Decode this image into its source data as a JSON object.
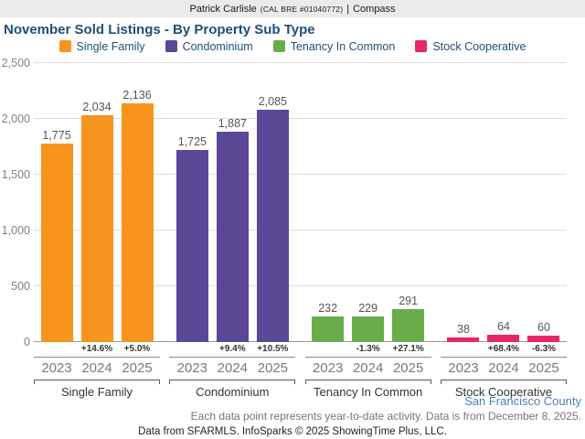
{
  "header": {
    "name": "Patrick Carlisle",
    "license": "(CAL BRE #01040772)",
    "separator": "|",
    "brand": "Compass"
  },
  "title": "November Sold Listings - By Property Sub Type",
  "legend": [
    {
      "label": "Single Family",
      "color": "#F7941E"
    },
    {
      "label": "Condominium",
      "color": "#5A4796"
    },
    {
      "label": "Tenancy In Common",
      "color": "#68AD49"
    },
    {
      "label": "Stock Cooperative",
      "color": "#E82762"
    }
  ],
  "chart_data": {
    "type": "bar",
    "title": "November Sold Listings - By Property Sub Type",
    "ylabel": "",
    "xlabel": "",
    "ylim": [
      0,
      2500
    ],
    "yticks": [
      0,
      500,
      1000,
      1500,
      2000,
      2500
    ],
    "ytick_labels": [
      "0",
      "500",
      "1,000",
      "1,500",
      "2,000",
      "2,500"
    ],
    "grid": true,
    "legend_position": "top",
    "categories": [
      "2023",
      "2024",
      "2025"
    ],
    "groups": [
      {
        "category": "Single Family",
        "color": "#F7941E",
        "values": [
          1775,
          2034,
          2136
        ],
        "value_labels": [
          "1,775",
          "2,034",
          "2,136"
        ],
        "pct_change": [
          "",
          "+14.6%",
          "+5.0%"
        ]
      },
      {
        "category": "Condominium",
        "color": "#5A4796",
        "values": [
          1725,
          1887,
          2085
        ],
        "value_labels": [
          "1,725",
          "1,887",
          "2,085"
        ],
        "pct_change": [
          "",
          "+9.4%",
          "+10.5%"
        ]
      },
      {
        "category": "Tenancy In Common",
        "color": "#68AD49",
        "values": [
          232,
          229,
          291
        ],
        "value_labels": [
          "232",
          "229",
          "291"
        ],
        "pct_change": [
          "",
          "-1.3%",
          "+27.1%"
        ]
      },
      {
        "category": "Stock Cooperative",
        "color": "#E82762",
        "values": [
          38,
          64,
          60
        ],
        "value_labels": [
          "38",
          "64",
          "60"
        ],
        "pct_change": [
          "",
          "+68.4%",
          "-6.3%"
        ]
      }
    ]
  },
  "footer": {
    "region": "San Francisco County",
    "note": "Each data point represents year-to-date activity. Data is from December 8, 2025.",
    "attribution": "Data from SFARMLS. InfoSparks © 2025 ShowingTime Plus, LLC."
  }
}
